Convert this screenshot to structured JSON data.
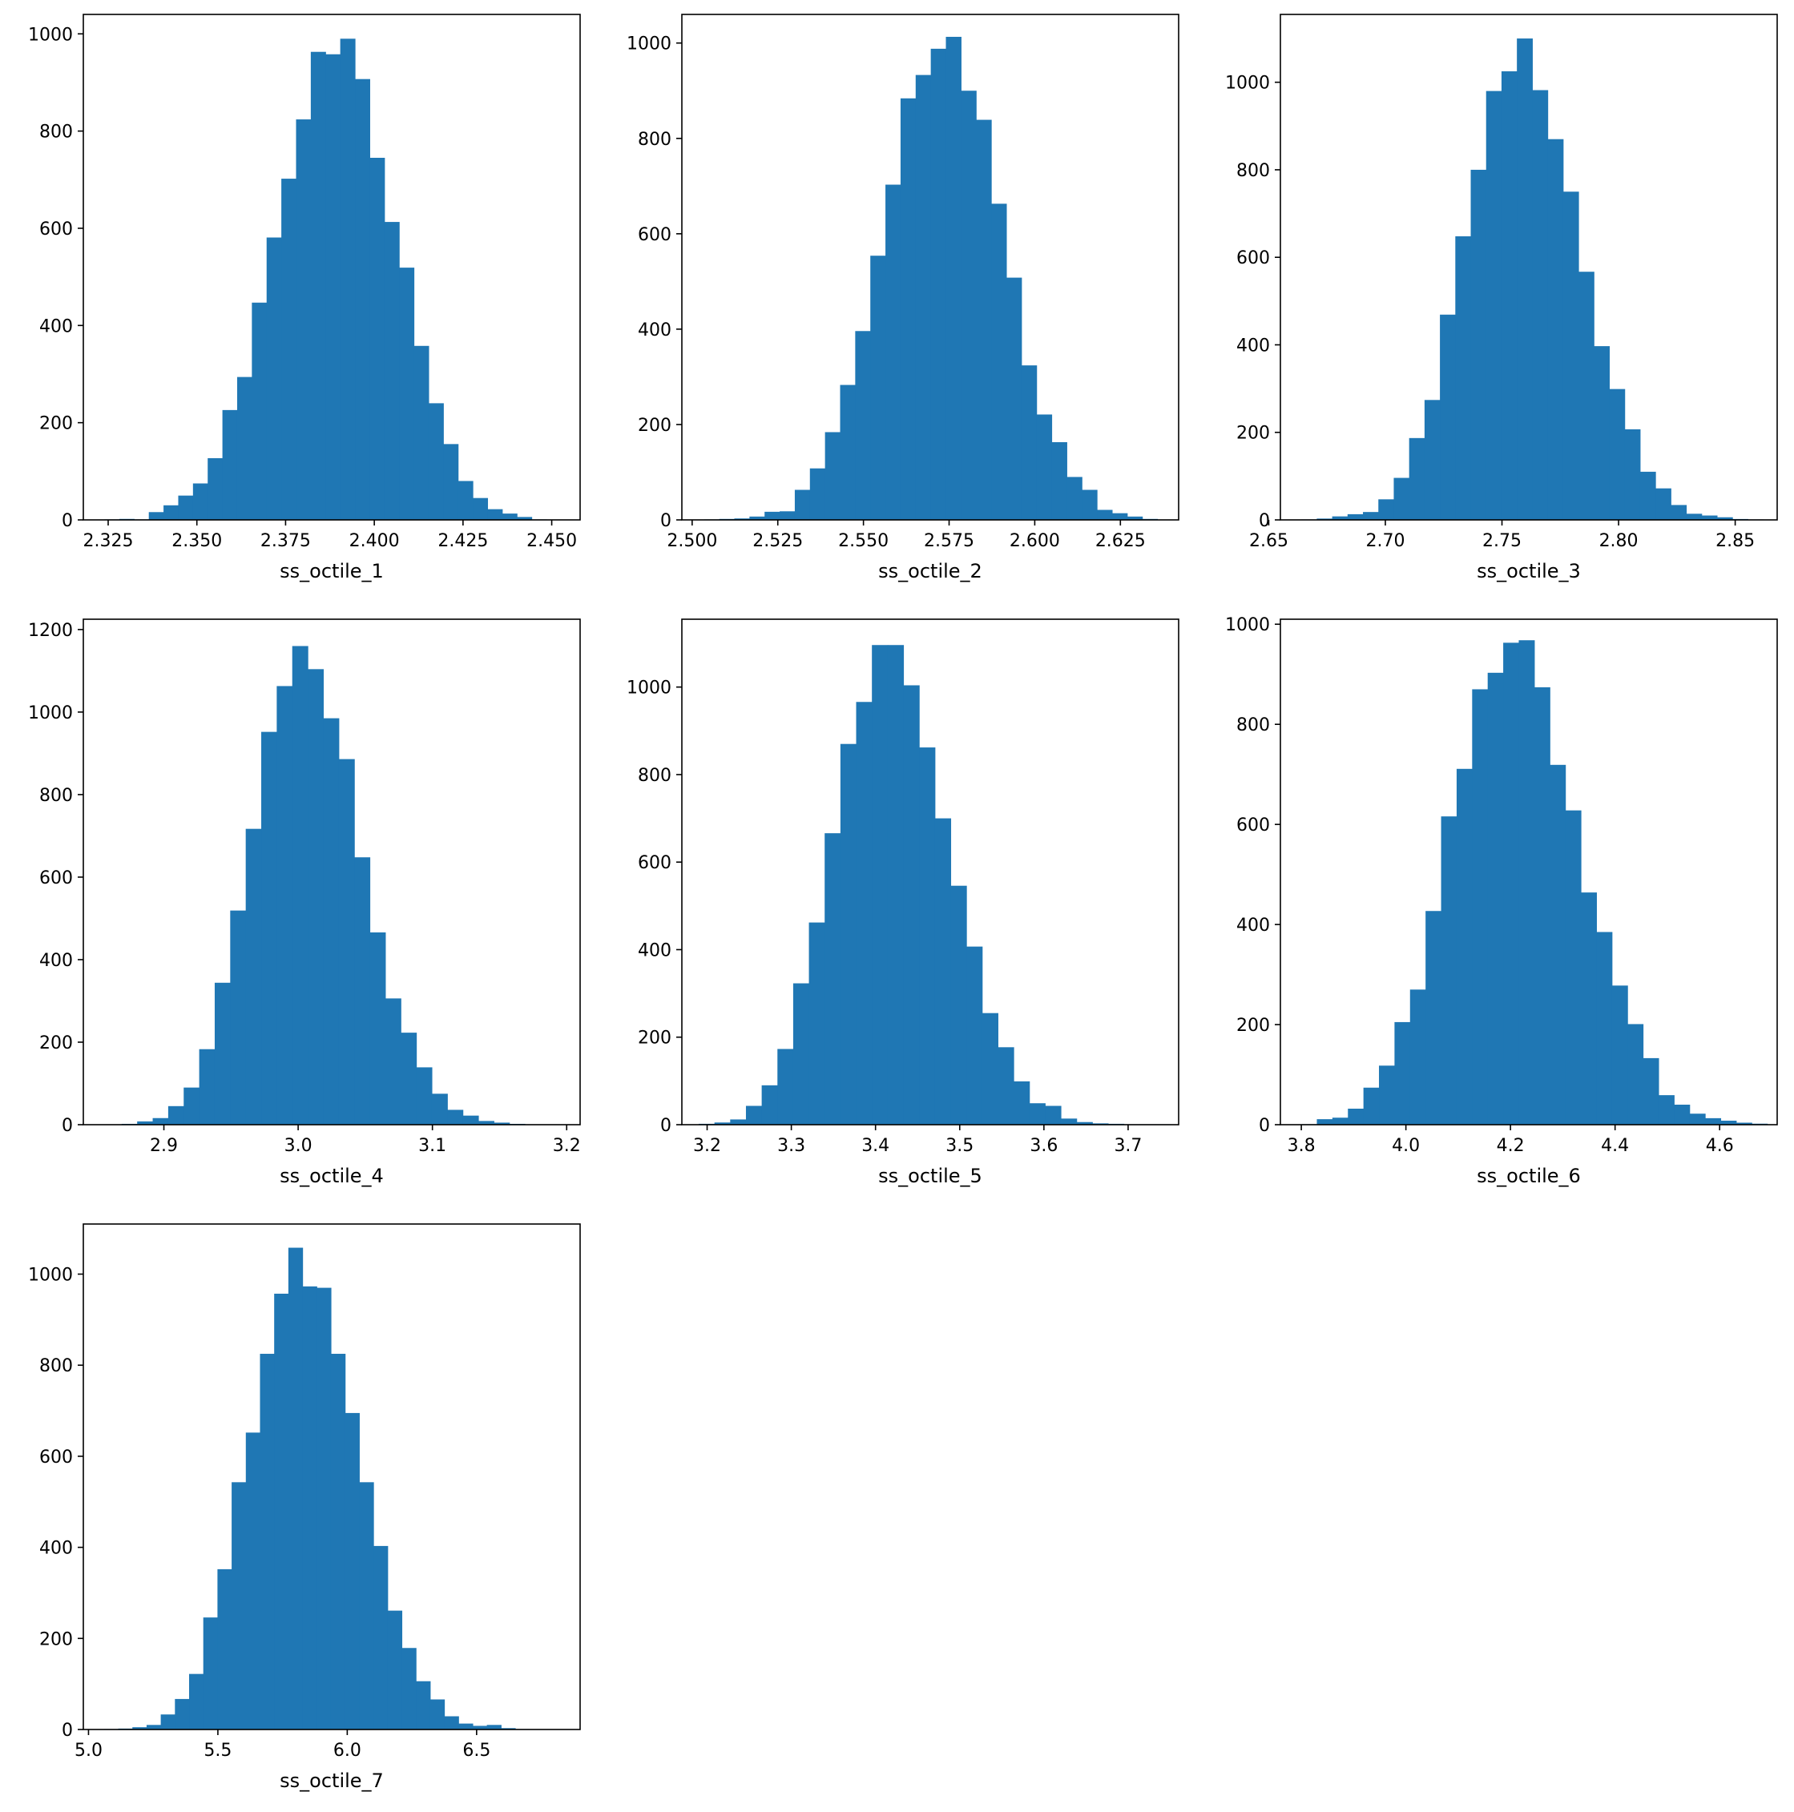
{
  "figure": {
    "background": "#ffffff",
    "bar_color": "#1f77b4",
    "grid": false,
    "layout": "3x3 grid of histograms, bottom row has one panel"
  },
  "chart_data": [
    {
      "type": "bar",
      "xlabel": "ss_octile_1",
      "xlim": [
        2.318,
        2.458
      ],
      "ylim": [
        0,
        1040
      ],
      "xticks": [
        2.325,
        2.35,
        2.375,
        2.4,
        2.425,
        2.45
      ],
      "xtick_labels": [
        "2.325",
        "2.350",
        "2.375",
        "2.400",
        "2.425",
        "2.450"
      ],
      "yticks": [
        0,
        200,
        400,
        600,
        800,
        1000
      ],
      "ytick_labels": [
        "0",
        "200",
        "400",
        "600",
        "800",
        "1000"
      ],
      "bin_start": 2.324,
      "bin_width": 0.00415,
      "counts": [
        1,
        2,
        1,
        16,
        30,
        50,
        75,
        127,
        226,
        294,
        447,
        581,
        702,
        824,
        963,
        958,
        990,
        907,
        745,
        613,
        519,
        358,
        240,
        156,
        80,
        45,
        22,
        13,
        6,
        1
      ]
    },
    {
      "type": "bar",
      "xlabel": "ss_octile_2",
      "xlim": [
        2.497,
        2.642
      ],
      "ylim": [
        0,
        1060
      ],
      "xticks": [
        2.5,
        2.525,
        2.55,
        2.575,
        2.6,
        2.625
      ],
      "xtick_labels": [
        "2.500",
        "2.525",
        "2.550",
        "2.575",
        "2.600",
        "2.625"
      ],
      "yticks": [
        0,
        200,
        400,
        600,
        800,
        1000
      ],
      "ytick_labels": [
        "0",
        "200",
        "400",
        "600",
        "800",
        "1000"
      ],
      "bin_start": 2.5035,
      "bin_width": 0.00441,
      "counts": [
        1,
        2,
        3,
        7,
        17,
        18,
        63,
        108,
        184,
        283,
        396,
        554,
        703,
        884,
        933,
        988,
        1013,
        900,
        839,
        663,
        508,
        324,
        221,
        163,
        90,
        63,
        21,
        14,
        7,
        2
      ]
    },
    {
      "type": "bar",
      "xlabel": "ss_octile_3",
      "xlim": [
        2.655,
        2.868
      ],
      "ylim": [
        0,
        1155
      ],
      "xticks": [
        2.65,
        2.7,
        2.75,
        2.8,
        2.85
      ],
      "xtick_labels": [
        "2.65",
        "2.70",
        "2.75",
        "2.80",
        "2.85"
      ],
      "yticks": [
        0,
        200,
        400,
        600,
        800,
        1000
      ],
      "ytick_labels": [
        "0",
        "200",
        "400",
        "600",
        "800",
        "1000"
      ],
      "bin_start": 2.664,
      "bin_width": 0.0066,
      "counts": [
        1,
        3,
        8,
        13,
        18,
        47,
        96,
        187,
        274,
        469,
        648,
        800,
        980,
        1025,
        1100,
        982,
        870,
        750,
        567,
        397,
        299,
        207,
        110,
        72,
        34,
        14,
        10,
        6,
        2,
        1
      ]
    },
    {
      "type": "bar",
      "xlabel": "ss_octile_4",
      "xlim": [
        2.84,
        3.21
      ],
      "ylim": [
        0,
        1225
      ],
      "xticks": [
        2.9,
        3.0,
        3.1,
        3.2
      ],
      "xtick_labels": [
        "2.9",
        "3.0",
        "3.1",
        "3.2"
      ],
      "yticks": [
        0,
        200,
        400,
        600,
        800,
        1000,
        1200
      ],
      "ytick_labels": [
        "0",
        "200",
        "400",
        "600",
        "800",
        "1000",
        "1200"
      ],
      "bin_start": 2.857,
      "bin_width": 0.01155,
      "counts": [
        1,
        2,
        8,
        16,
        45,
        90,
        183,
        344,
        519,
        717,
        952,
        1063,
        1160,
        1104,
        985,
        886,
        648,
        466,
        306,
        223,
        139,
        75,
        36,
        22,
        9,
        5,
        2,
        1,
        1,
        1
      ]
    },
    {
      "type": "bar",
      "xlabel": "ss_octile_5",
      "xlim": [
        3.17,
        3.76
      ],
      "ylim": [
        0,
        1155
      ],
      "xticks": [
        3.2,
        3.3,
        3.4,
        3.5,
        3.6,
        3.7
      ],
      "xtick_labels": [
        "3.2",
        "3.3",
        "3.4",
        "3.5",
        "3.6",
        "3.7"
      ],
      "yticks": [
        0,
        200,
        400,
        600,
        800,
        1000
      ],
      "ytick_labels": [
        "0",
        "200",
        "400",
        "600",
        "800",
        "1000"
      ],
      "bin_start": 3.19,
      "bin_width": 0.0187,
      "counts": [
        2,
        5,
        12,
        43,
        90,
        173,
        323,
        462,
        666,
        870,
        966,
        1096,
        1096,
        1004,
        862,
        700,
        546,
        407,
        255,
        177,
        99,
        49,
        43,
        14,
        6,
        3,
        2,
        1,
        1,
        1
      ]
    },
    {
      "type": "bar",
      "xlabel": "ss_octile_6",
      "xlim": [
        3.76,
        4.71
      ],
      "ylim": [
        0,
        1010
      ],
      "xticks": [
        3.8,
        4.0,
        4.2,
        4.4,
        4.6
      ],
      "xtick_labels": [
        "3.8",
        "4.0",
        "4.2",
        "4.4",
        "4.6"
      ],
      "yticks": [
        0,
        200,
        400,
        600,
        800,
        1000
      ],
      "ytick_labels": [
        "0",
        "200",
        "400",
        "600",
        "800",
        "1000"
      ],
      "bin_start": 3.8,
      "bin_width": 0.0297,
      "counts": [
        1,
        11,
        14,
        32,
        74,
        118,
        205,
        270,
        427,
        616,
        711,
        870,
        903,
        963,
        968,
        874,
        719,
        628,
        464,
        385,
        278,
        201,
        133,
        59,
        40,
        22,
        13,
        8,
        4,
        2
      ]
    },
    {
      "type": "bar",
      "xlabel": "ss_octile_7",
      "xlim": [
        4.98,
        6.9
      ],
      "ylim": [
        0,
        1110
      ],
      "xticks": [
        5.0,
        5.5,
        6.0,
        6.5
      ],
      "xtick_labels": [
        "5.0",
        "5.5",
        "6.0",
        "6.5"
      ],
      "yticks": [
        0,
        200,
        400,
        600,
        800,
        1000
      ],
      "ytick_labels": [
        "0",
        "200",
        "400",
        "600",
        "800",
        "1000"
      ],
      "bin_start": 5.06,
      "bin_width": 0.0548,
      "counts": [
        1,
        2,
        5,
        10,
        33,
        67,
        122,
        246,
        352,
        543,
        652,
        825,
        957,
        1058,
        973,
        970,
        825,
        695,
        543,
        403,
        261,
        179,
        106,
        66,
        29,
        13,
        8,
        10,
        3,
        1
      ]
    }
  ]
}
